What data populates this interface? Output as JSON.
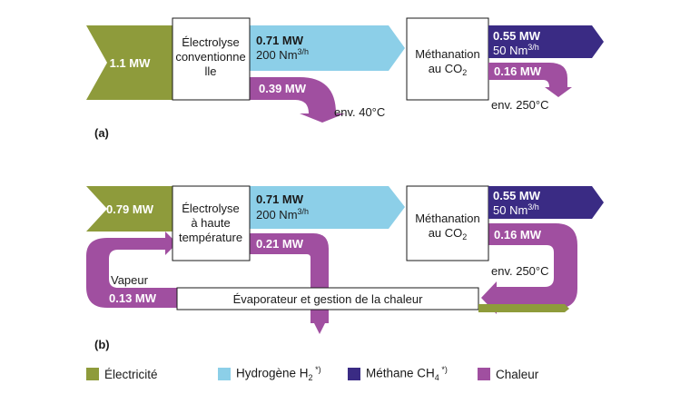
{
  "colors": {
    "electricity": "#8e9b3b",
    "hydrogen": "#8ccfe8",
    "methane": "#3a2b84",
    "heat": "#a04fa0"
  },
  "diagram_a": {
    "input_power": "1.1 MW",
    "electrolysis_lines": [
      "Électrolyse",
      "conventionne",
      "lle"
    ],
    "h2_power": "0.71 MW",
    "h2_flow": "200 Nm",
    "h2_flow_unit": "3/h",
    "heat_loss": "0.39 MW",
    "heat_loss_temp": "env. 40°C",
    "methanation_line1": "Méthanation",
    "methanation_line2": "au CO",
    "methanation_line2_sub": "2",
    "ch4_power": "0.55 MW",
    "ch4_flow": "50 Nm",
    "ch4_flow_unit": "3/h",
    "heat_out": "0.16 MW",
    "heat_out_temp": "env. 250°C",
    "panel_label": "(a)"
  },
  "diagram_b": {
    "input_power": "0.79 MW",
    "electrolysis_lines": [
      "Électrolyse",
      "à haute",
      "température"
    ],
    "h2_power": "0.71 MW",
    "h2_flow": "200 Nm",
    "h2_flow_unit": "3/h",
    "heat_loss": "0.21 MW",
    "methanation_line1": "Méthanation",
    "methanation_line2": "au CO",
    "methanation_line2_sub": "2",
    "ch4_power": "0.55 MW",
    "ch4_flow": "50 Nm",
    "ch4_flow_unit": "3/h",
    "heat_out": "0.16 MW",
    "heat_out_temp": "env. 250°C",
    "steam_label": "Vapeur",
    "steam_power": "0.13 MW",
    "evaporator": "Évaporateur et gestion de la chaleur",
    "panel_label": "(b)"
  },
  "legend": {
    "electricity": "Électricité",
    "hydrogen": "Hydrogène H",
    "hydrogen_sub": "2",
    "hydrogen_note": " *)",
    "methane": "Méthane CH",
    "methane_sub": "4",
    "methane_note": " *)",
    "heat": "Chaleur"
  }
}
